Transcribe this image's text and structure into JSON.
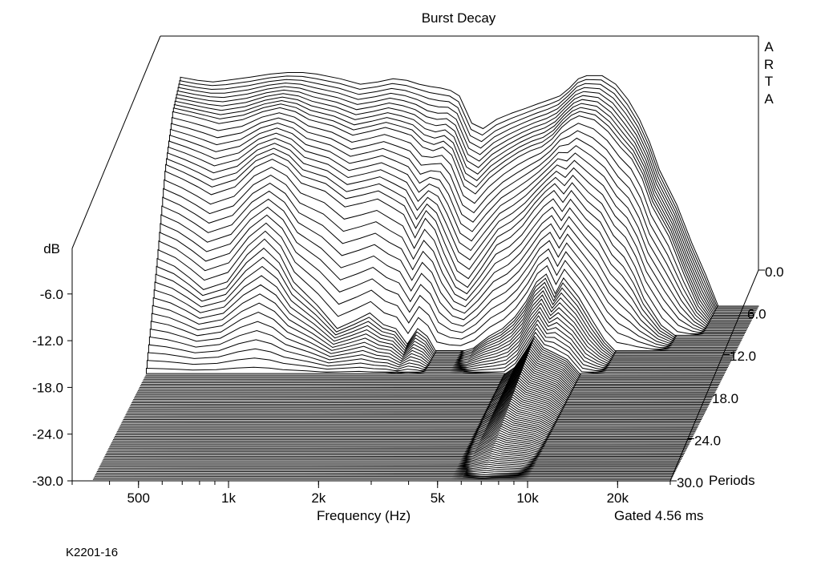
{
  "chart_data": {
    "type": "waterfall",
    "title": "Burst Decay",
    "xlabel": "Frequency (Hz)",
    "ylabel": "dB",
    "zlabel": "Periods",
    "x_scale": "log",
    "xlim": [
      300,
      30000
    ],
    "ylim": [
      -30,
      0
    ],
    "zlim": [
      0,
      30
    ],
    "x_ticks": [
      500,
      1000,
      2000,
      5000,
      10000,
      20000
    ],
    "x_tick_labels": [
      "500",
      "1k",
      "2k",
      "5k",
      "10k",
      "20k"
    ],
    "y_ticks": [
      -6,
      -12,
      -18,
      -24,
      -30
    ],
    "y_tick_labels": [
      "-6.0",
      "-12.0",
      "-18.0",
      "-24.0",
      "-30.0"
    ],
    "z_ticks": [
      0,
      6,
      12,
      18,
      24,
      30
    ],
    "z_tick_labels": [
      "0.0",
      "6.0",
      "12.0",
      "18.0",
      "24.0",
      "30.0"
    ],
    "grid": false,
    "frequency_hz": [
      350,
      400,
      450,
      500,
      600,
      700,
      800,
      900,
      1000,
      1200,
      1400,
      1600,
      1800,
      2000,
      2200,
      2400,
      2600,
      2800,
      3000,
      3300,
      3600,
      4000,
      4500,
      5000,
      5500,
      6000,
      6500,
      7000,
      7500,
      8000,
      9000,
      10000,
      11000,
      12000,
      13000,
      14000,
      16000,
      18000,
      20000,
      22000
    ],
    "series": [
      {
        "period": 0,
        "db": [
          -0.6,
          -1.0,
          -1.2,
          -1.0,
          -0.6,
          -0.2,
          0.0,
          0.0,
          -0.2,
          -0.8,
          -1.5,
          -1.2,
          -0.8,
          -1.0,
          -1.5,
          -1.8,
          -2.0,
          -2.3,
          -3.0,
          -6.5,
          -7.2,
          -6.0,
          -5.2,
          -4.6,
          -4.0,
          -3.5,
          -3.0,
          -2.0,
          -0.8,
          -0.4,
          -0.4,
          -1.5,
          -3.5,
          -6.0,
          -9.0,
          -12.5,
          -17.0,
          -22.0,
          -26.0,
          -30.0
        ]
      },
      {
        "period": 2.6,
        "db": [
          -3.0,
          -3.5,
          -4.0,
          -4.5,
          -4.0,
          -3.0,
          -2.5,
          -3.0,
          -4.0,
          -4.8,
          -6.0,
          -5.5,
          -5.0,
          -5.5,
          -6.0,
          -7.5,
          -8.0,
          -7.5,
          -8.5,
          -12.5,
          -13.5,
          -11.5,
          -10.0,
          -8.8,
          -8.0,
          -7.5,
          -6.5,
          -5.0,
          -4.0,
          -3.5,
          -4.0,
          -5.5,
          -7.5,
          -9.0,
          -11.5,
          -15.0,
          -19.0,
          -24.0,
          -28.0,
          -30.0
        ]
      },
      {
        "period": 5.2,
        "db": [
          -8.5,
          -9.5,
          -10.5,
          -11.5,
          -10.5,
          -8.0,
          -7.0,
          -8.0,
          -10.0,
          -11.0,
          -13.0,
          -12.5,
          -12.0,
          -13.0,
          -14.0,
          -17.0,
          -14.5,
          -16.0,
          -19.0,
          -22.5,
          -23.5,
          -21.0,
          -18.0,
          -17.0,
          -15.5,
          -13.5,
          -12.0,
          -11.0,
          -12.5,
          -11.0,
          -13.5,
          -15.0,
          -18.0,
          -19.5,
          -22.0,
          -25.0,
          -28.5,
          -30.0,
          -30.0,
          -30.0
        ]
      },
      {
        "period": 7.9,
        "db": [
          -18.0,
          -19.0,
          -20.5,
          -22.0,
          -21.0,
          -17.5,
          -15.5,
          -17.5,
          -21.0,
          -24.0,
          -27.0,
          -26.0,
          -25.0,
          -26.5,
          -27.0,
          -29.0,
          -27.0,
          -28.0,
          -30.0,
          -30.0,
          -30.0,
          -29.5,
          -28.0,
          -27.0,
          -25.5,
          -23.5,
          -21.0,
          -20.0,
          -22.5,
          -20.5,
          -23.0,
          -26.0,
          -28.5,
          -30.0,
          -30.0,
          -30.0,
          -30.0,
          -30.0,
          -30.0,
          -30.0
        ]
      },
      {
        "period": 11.8,
        "db": [
          -30.0,
          -30.0,
          -30.0,
          -30.0,
          -30.0,
          -30.0,
          -30.0,
          -30.0,
          -30.0,
          -30.0,
          -30.0,
          -30.0,
          -30.0,
          -30.0,
          -30.0,
          -30.0,
          -30.0,
          -30.0,
          -30.0,
          -30.0,
          -30.0,
          -30.0,
          -30.0,
          -30.0,
          -30.0,
          -29.0,
          -27.0,
          -25.0,
          -26.5,
          -27.0,
          -28.0,
          -30.0,
          -30.0,
          -30.0,
          -30.0,
          -30.0,
          -30.0,
          -30.0,
          -30.0,
          -30.0
        ]
      },
      {
        "period": 30,
        "db": [
          -30.0,
          -30.0,
          -30.0,
          -30.0,
          -30.0,
          -30.0,
          -30.0,
          -30.0,
          -30.0,
          -30.0,
          -30.0,
          -30.0,
          -30.0,
          -30.0,
          -30.0,
          -30.0,
          -30.0,
          -30.0,
          -30.0,
          -30.0,
          -30.0,
          -30.0,
          -30.0,
          -30.0,
          -30.0,
          -30.0,
          -30.0,
          -30.0,
          -30.0,
          -30.0,
          -30.0,
          -30.0,
          -30.0,
          -30.0,
          -30.0,
          -30.0,
          -30.0,
          -30.0,
          -30.0,
          -30.0
        ]
      }
    ],
    "slices": 115,
    "line_color": "#000000",
    "fill_color": "#ffffff"
  },
  "annotations": {
    "watermark": "ARTA",
    "gated": "Gated 4.56 ms",
    "footer": "K2201-16"
  }
}
